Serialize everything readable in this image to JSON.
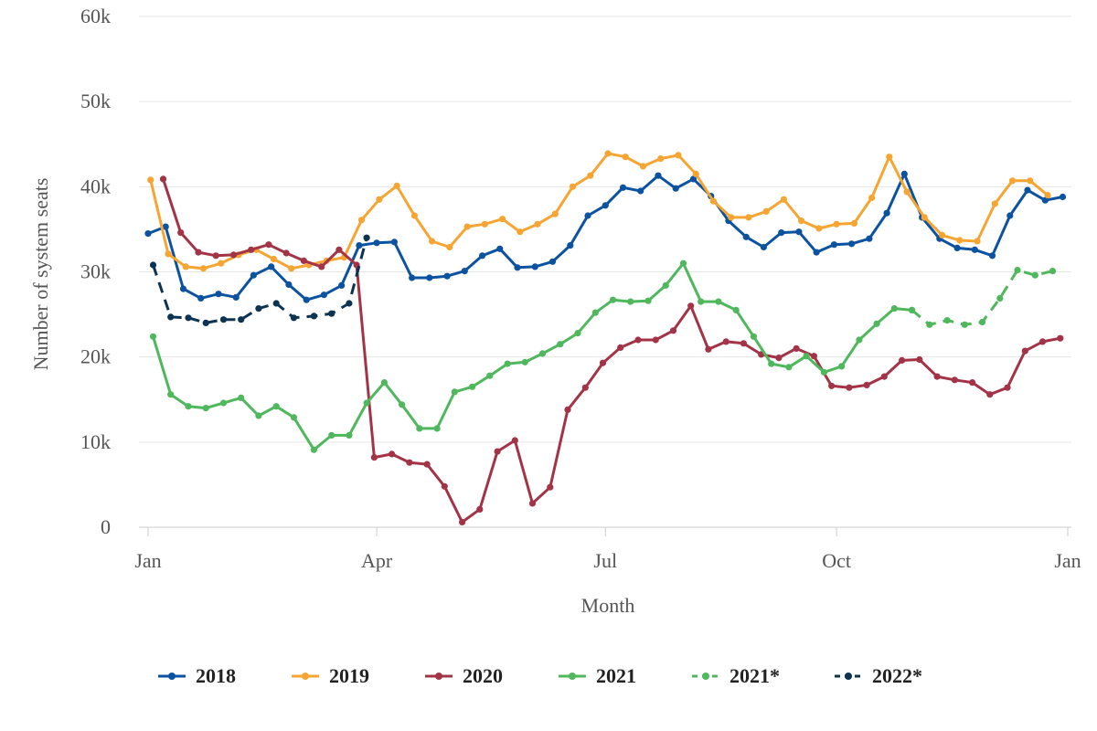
{
  "chart_data": {
    "type": "line",
    "xlabel": "Month",
    "ylabel": "Number of system seats",
    "ylim": [
      0,
      60000
    ],
    "y_ticks": [
      {
        "value": 0,
        "label": "0"
      },
      {
        "value": 10000,
        "label": "10k"
      },
      {
        "value": 20000,
        "label": "20k"
      },
      {
        "value": 30000,
        "label": "30k"
      },
      {
        "value": 40000,
        "label": "40k"
      },
      {
        "value": 50000,
        "label": "50k"
      },
      {
        "value": 60000,
        "label": "60k"
      }
    ],
    "x_ticks": [
      {
        "date": "2000-01-01",
        "label": "Jan"
      },
      {
        "date": "2000-04-01",
        "label": "Apr"
      },
      {
        "date": "2000-07-01",
        "label": "Jul"
      },
      {
        "date": "2000-10-01",
        "label": "Oct"
      },
      {
        "date": "2001-01-01",
        "label": "Jan"
      }
    ],
    "xlim": [
      "2000-01-01",
      "2001-01-01"
    ],
    "grid": "horizontal",
    "legend_position": "bottom",
    "series": [
      {
        "name": "2018",
        "color": "#0b52a0",
        "dashed": false,
        "x": [
          "2000-01-01",
          "2000-01-08",
          "2000-01-15",
          "2000-01-22",
          "2000-01-29",
          "2000-02-05",
          "2000-02-12",
          "2000-02-19",
          "2000-02-26",
          "2000-03-04",
          "2000-03-11",
          "2000-03-18",
          "2000-03-25",
          "2000-04-01",
          "2000-04-08",
          "2000-04-15",
          "2000-04-22",
          "2000-04-29",
          "2000-05-06",
          "2000-05-13",
          "2000-05-20",
          "2000-05-27",
          "2000-06-03",
          "2000-06-10",
          "2000-06-17",
          "2000-06-24",
          "2000-07-01",
          "2000-07-08",
          "2000-07-15",
          "2000-07-22",
          "2000-07-29",
          "2000-08-05",
          "2000-08-12",
          "2000-08-19",
          "2000-08-26",
          "2000-09-02",
          "2000-09-09",
          "2000-09-16",
          "2000-09-23",
          "2000-09-30",
          "2000-10-07",
          "2000-10-14",
          "2000-10-21",
          "2000-10-28",
          "2000-11-04",
          "2000-11-11",
          "2000-11-18",
          "2000-11-25",
          "2000-12-02",
          "2000-12-09",
          "2000-12-16",
          "2000-12-23",
          "2000-12-30"
        ],
        "values": [
          34500,
          35300,
          28000,
          26900,
          27400,
          27000,
          29600,
          30600,
          28500,
          26700,
          27300,
          28400,
          33100,
          33400,
          33500,
          29300,
          29300,
          29500,
          30100,
          31900,
          32700,
          30500,
          30600,
          31200,
          33100,
          36600,
          37800,
          39900,
          39500,
          41300,
          39800,
          40900,
          38900,
          36000,
          34100,
          32900,
          34600,
          34700,
          32300,
          33200,
          33300,
          33900,
          36900,
          41500,
          36400,
          33900,
          32800,
          32600,
          31900,
          36600,
          39600,
          38400,
          38800
        ]
      },
      {
        "name": "2019",
        "color": "#f6a532",
        "dashed": false,
        "x": [
          "2000-01-02",
          "2000-01-09",
          "2000-01-16",
          "2000-01-23",
          "2000-01-30",
          "2000-02-06",
          "2000-02-13",
          "2000-02-20",
          "2000-02-27",
          "2000-03-05",
          "2000-03-12",
          "2000-03-19",
          "2000-03-26",
          "2000-04-02",
          "2000-04-09",
          "2000-04-16",
          "2000-04-23",
          "2000-04-30",
          "2000-05-07",
          "2000-05-14",
          "2000-05-21",
          "2000-05-28",
          "2000-06-04",
          "2000-06-11",
          "2000-06-18",
          "2000-06-25",
          "2000-07-02",
          "2000-07-09",
          "2000-07-16",
          "2000-07-23",
          "2000-07-30",
          "2000-08-06",
          "2000-08-13",
          "2000-08-20",
          "2000-08-27",
          "2000-09-03",
          "2000-09-10",
          "2000-09-17",
          "2000-09-24",
          "2000-10-01",
          "2000-10-08",
          "2000-10-15",
          "2000-10-22",
          "2000-10-29",
          "2000-11-05",
          "2000-11-12",
          "2000-11-19",
          "2000-11-26",
          "2000-12-03",
          "2000-12-10",
          "2000-12-17",
          "2000-12-24",
          "2000-12-31"
        ],
        "values": [
          40800,
          32100,
          30600,
          30400,
          31000,
          32000,
          32600,
          31500,
          30400,
          30800,
          31300,
          31700,
          36100,
          38500,
          40100,
          36600,
          33600,
          32900,
          35300,
          35600,
          36200,
          34700,
          35600,
          36800,
          40000,
          41300,
          43900,
          43500,
          42400,
          43300,
          43700,
          41500,
          38300,
          36400,
          36400,
          37100,
          38500,
          36000,
          35100,
          35600,
          35700,
          38700,
          43500,
          39400,
          36400,
          34300,
          33700,
          33600,
          38000,
          40700,
          40700,
          39000,
          null
        ]
      },
      {
        "name": "2020",
        "color": "#a33346",
        "dashed": false,
        "x": [
          "2000-01-07",
          "2000-01-14",
          "2000-01-21",
          "2000-01-28",
          "2000-02-04",
          "2000-02-11",
          "2000-02-18",
          "2000-02-25",
          "2000-03-03",
          "2000-03-10",
          "2000-03-17",
          "2000-03-24",
          "2000-03-31",
          "2000-04-07",
          "2000-04-14",
          "2000-04-21",
          "2000-04-28",
          "2000-05-05",
          "2000-05-12",
          "2000-05-19",
          "2000-05-26",
          "2000-06-02",
          "2000-06-09",
          "2000-06-16",
          "2000-06-23",
          "2000-06-30",
          "2000-07-07",
          "2000-07-14",
          "2000-07-21",
          "2000-07-28",
          "2000-08-04",
          "2000-08-11",
          "2000-08-18",
          "2000-08-25",
          "2000-09-01",
          "2000-09-08",
          "2000-09-15",
          "2000-09-22",
          "2000-09-29",
          "2000-10-06",
          "2000-10-13",
          "2000-10-20",
          "2000-10-27",
          "2000-11-03",
          "2000-11-10",
          "2000-11-17",
          "2000-11-24",
          "2000-12-01",
          "2000-12-08",
          "2000-12-15",
          "2000-12-22",
          "2000-12-29"
        ],
        "values": [
          40900,
          34600,
          32300,
          31900,
          32000,
          32600,
          33200,
          32200,
          31300,
          30600,
          32600,
          30800,
          8200,
          8600,
          7600,
          7400,
          4800,
          600,
          2100,
          8900,
          10200,
          2800,
          4700,
          13800,
          16400,
          19300,
          21100,
          22000,
          22000,
          23100,
          26000,
          20900,
          21800,
          21600,
          20300,
          19900,
          21000,
          20100,
          16600,
          16400,
          16700,
          17700,
          19600,
          19700,
          17700,
          17300,
          17000,
          15600,
          16400,
          20700,
          21800,
          22200
        ]
      },
      {
        "name": "2021",
        "color": "#4fb85c",
        "dashed": false,
        "x": [
          "2000-01-03",
          "2000-01-10",
          "2000-01-17",
          "2000-01-24",
          "2000-01-31",
          "2000-02-07",
          "2000-02-14",
          "2000-02-21",
          "2000-02-28",
          "2000-03-07",
          "2000-03-14",
          "2000-03-21",
          "2000-03-28",
          "2000-04-04",
          "2000-04-11",
          "2000-04-18",
          "2000-04-25",
          "2000-05-02",
          "2000-05-09",
          "2000-05-16",
          "2000-05-23",
          "2000-05-30",
          "2000-06-06",
          "2000-06-13",
          "2000-06-20",
          "2000-06-27",
          "2000-07-04",
          "2000-07-11",
          "2000-07-18",
          "2000-07-25",
          "2000-08-01",
          "2000-08-08",
          "2000-08-15",
          "2000-08-22",
          "2000-08-29",
          "2000-09-05",
          "2000-09-12",
          "2000-09-19",
          "2000-09-26",
          "2000-10-03",
          "2000-10-10",
          "2000-10-17",
          "2000-10-24",
          "2000-10-31"
        ],
        "values": [
          22400,
          15600,
          14200,
          14000,
          14600,
          15200,
          13100,
          14200,
          12900,
          9100,
          10800,
          10800,
          14600,
          17000,
          14400,
          11600,
          11600,
          15900,
          16500,
          17800,
          19200,
          19400,
          20400,
          21500,
          22800,
          25200,
          26700,
          26500,
          26600,
          28400,
          31000,
          26500,
          26500,
          25500,
          22400,
          19200,
          18800,
          20100,
          18200,
          18900,
          22000,
          23900,
          25700,
          25500
        ]
      },
      {
        "name": "2021*",
        "color": "#4fb85c",
        "dashed": true,
        "x": [
          "2000-10-31",
          "2000-11-07",
          "2000-11-14",
          "2000-11-21",
          "2000-11-28",
          "2000-12-05",
          "2000-12-12",
          "2000-12-19",
          "2000-12-26"
        ],
        "values": [
          25500,
          23800,
          24300,
          23800,
          24100,
          26900,
          30200,
          29600,
          30100
        ]
      },
      {
        "name": "2022*",
        "color": "#0c3352",
        "dashed": true,
        "x": [
          "2000-01-03",
          "2000-01-10",
          "2000-01-17",
          "2000-01-24",
          "2000-01-31",
          "2000-02-07",
          "2000-02-14",
          "2000-02-21",
          "2000-02-28",
          "2000-03-07",
          "2000-03-14",
          "2000-03-21",
          "2000-03-28"
        ],
        "values": [
          30800,
          24700,
          24600,
          24000,
          24400,
          24400,
          25700,
          26300,
          24600,
          24800,
          25100,
          26300,
          34000
        ]
      }
    ]
  }
}
